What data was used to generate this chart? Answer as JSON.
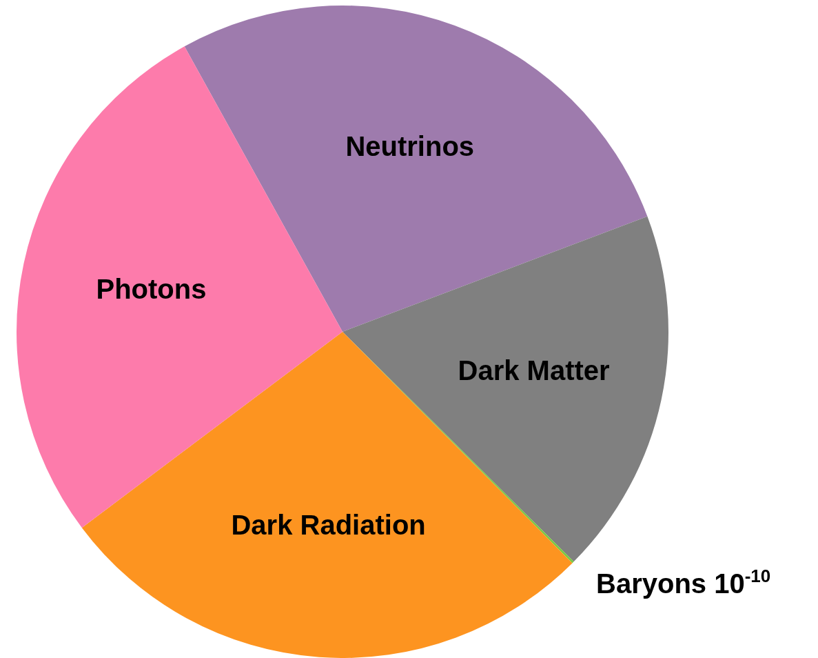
{
  "chart_data": {
    "type": "pie",
    "categories": [
      "Neutrinos",
      "Dark Matter",
      "Baryons 10$^{-10}$",
      "Dark Radiation",
      "Photons"
    ],
    "values": [
      27.3,
      18.2,
      0.1,
      27.2,
      27.2
    ],
    "colors": [
      "#9e7bad",
      "#808080",
      "#7ac943",
      "#fd9420",
      "#fd7bab"
    ],
    "legend": false
  }
}
